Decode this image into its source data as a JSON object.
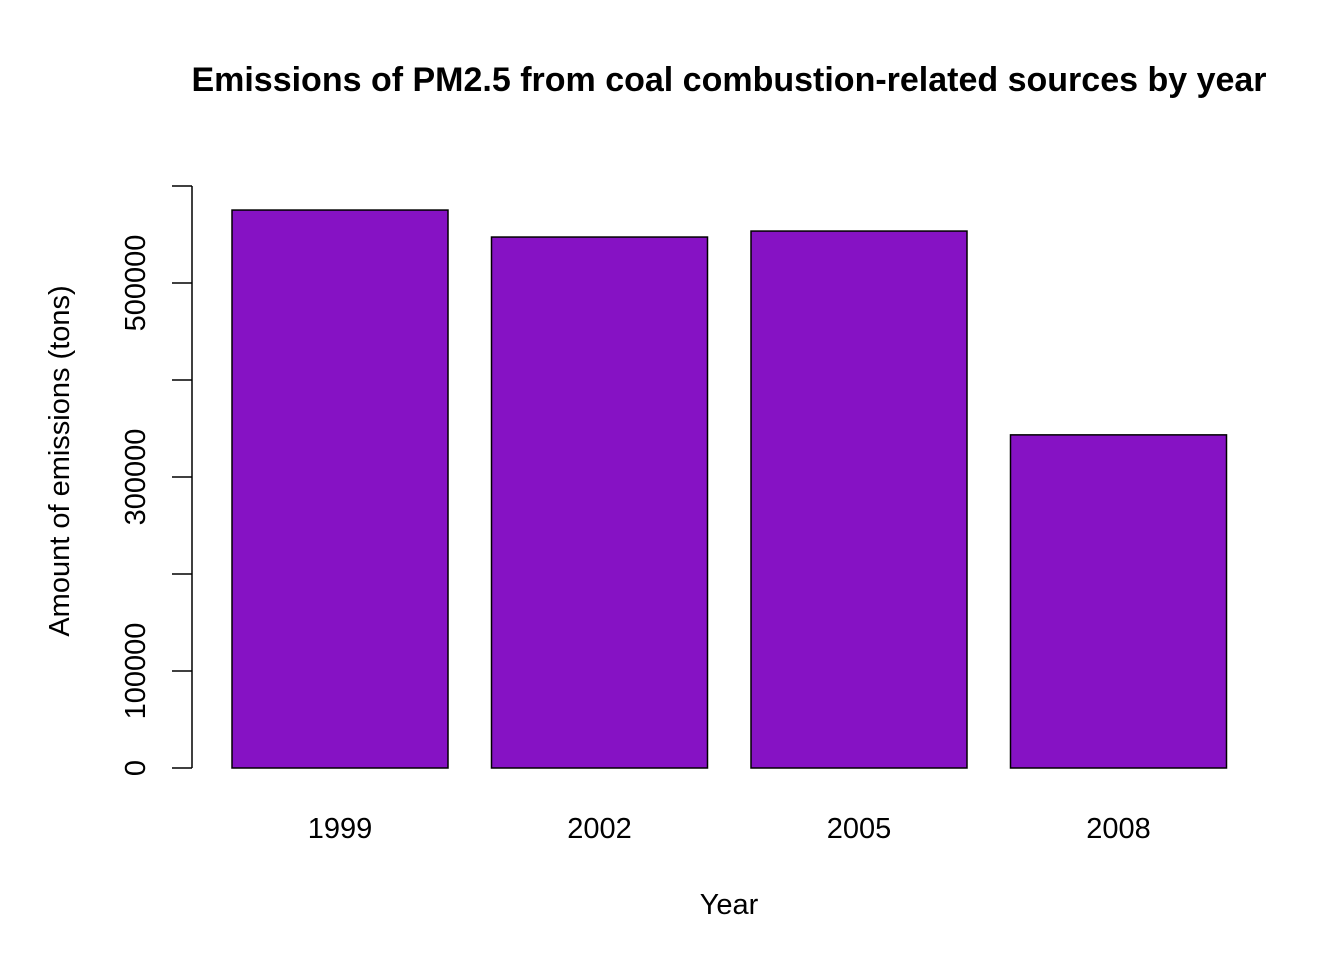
{
  "chart_data": {
    "type": "bar",
    "title": "Emissions of PM2.5 from coal combustion-related sources by year",
    "xlabel": "Year",
    "ylabel": "Amount of emissions (tons)",
    "categories": [
      "1999",
      "2002",
      "2005",
      "2008"
    ],
    "values": [
      575207,
      547380,
      553550,
      343432
    ],
    "ylim": [
      0,
      600000
    ],
    "y_ticks": [
      0,
      100000,
      200000,
      300000,
      400000,
      500000,
      600000
    ],
    "y_tick_labels": [
      "0",
      "100000",
      "",
      "300000",
      "",
      "500000",
      ""
    ],
    "bar_color": "#8612c4",
    "grid": false,
    "legend": "none"
  }
}
